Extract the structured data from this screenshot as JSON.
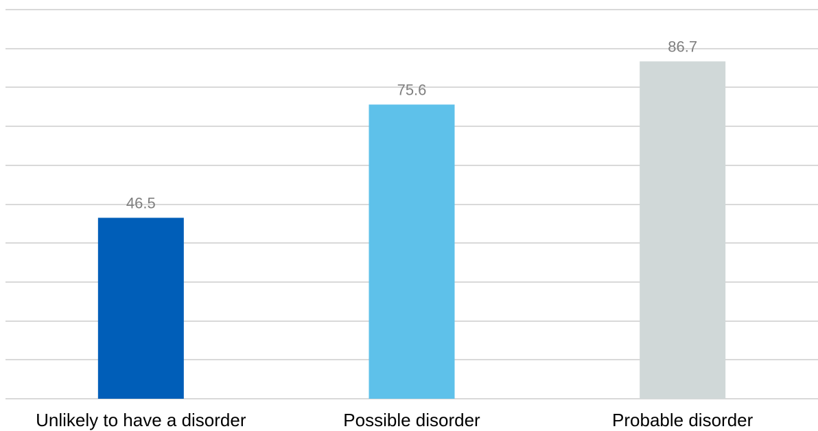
{
  "chart_data": {
    "type": "bar",
    "title": "",
    "xlabel": "",
    "ylabel": "",
    "categories": [
      "Unlikely to have a disorder",
      "Possible disorder",
      "Probable disorder"
    ],
    "values": [
      46.5,
      75.6,
      86.7
    ],
    "data_labels": [
      "46.5",
      "75.6",
      "86.7"
    ],
    "bar_colors": [
      "#005eb8",
      "#5ec1ea",
      "#d0d8d8"
    ],
    "ylim": [
      0,
      100
    ],
    "y_gridlines": 10,
    "grid": true,
    "y_axis_labels_shown": false,
    "legend": "none"
  }
}
